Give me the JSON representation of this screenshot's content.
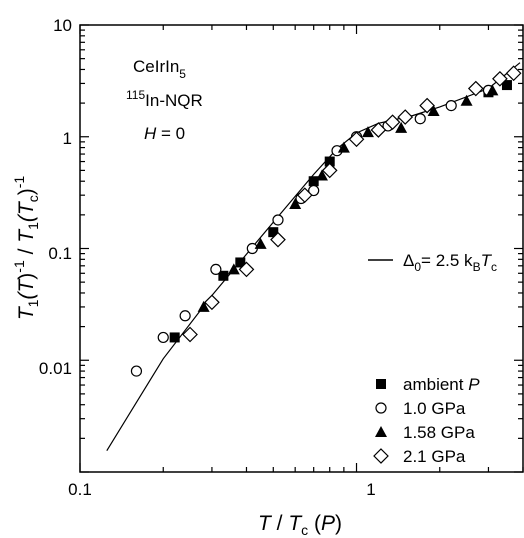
{
  "chart_data": {
    "type": "scatter",
    "x_scale": "log",
    "y_scale": "log",
    "xlim": [
      0.1,
      4.0
    ],
    "ylim": [
      0.001,
      10
    ],
    "x_ticks": [
      {
        "value": 0.1,
        "label": "0.1"
      },
      {
        "value": 1,
        "label": "1"
      }
    ],
    "y_ticks": [
      {
        "value": 0.01,
        "label": "0.01"
      },
      {
        "value": 0.1,
        "label": "0.1"
      },
      {
        "value": 1,
        "label": "1"
      },
      {
        "value": 10,
        "label": "10"
      }
    ],
    "xlabel": "T / Tc (P)",
    "ylabel": "T1(T)-1 / T1(Tc)-1",
    "annotations": [
      "CeIrIn5",
      "115In-NQR",
      "H = 0"
    ],
    "legend_position": "bottom-right",
    "series": [
      {
        "name": "ambient P",
        "marker": "square-filled",
        "points": [
          [
            0.22,
            0.016
          ],
          [
            0.33,
            0.057
          ],
          [
            0.38,
            0.075
          ],
          [
            0.5,
            0.14
          ],
          [
            0.7,
            0.4
          ],
          [
            0.8,
            0.6
          ],
          [
            3.0,
            2.5
          ],
          [
            3.5,
            2.9
          ]
        ]
      },
      {
        "name": "1.0 GPa",
        "marker": "circle-open",
        "points": [
          [
            0.16,
            0.008
          ],
          [
            0.2,
            0.016
          ],
          [
            0.24,
            0.025
          ],
          [
            0.31,
            0.065
          ],
          [
            0.42,
            0.1
          ],
          [
            0.52,
            0.18
          ],
          [
            0.63,
            0.28
          ],
          [
            0.7,
            0.33
          ],
          [
            0.85,
            0.75
          ],
          [
            1.0,
            1.0
          ],
          [
            1.3,
            1.25
          ],
          [
            1.7,
            1.45
          ],
          [
            2.2,
            1.9
          ],
          [
            3.0,
            2.6
          ]
        ]
      },
      {
        "name": "1.58 GPa",
        "marker": "triangle-filled",
        "points": [
          [
            0.28,
            0.03
          ],
          [
            0.36,
            0.065
          ],
          [
            0.45,
            0.11
          ],
          [
            0.6,
            0.25
          ],
          [
            0.75,
            0.45
          ],
          [
            0.9,
            0.8
          ],
          [
            1.1,
            1.1
          ],
          [
            1.45,
            1.2
          ],
          [
            1.9,
            1.7
          ],
          [
            2.5,
            2.1
          ],
          [
            3.1,
            2.6
          ]
        ]
      },
      {
        "name": "2.1 GPa",
        "marker": "diamond-open",
        "points": [
          [
            0.25,
            0.017
          ],
          [
            0.3,
            0.033
          ],
          [
            0.4,
            0.065
          ],
          [
            0.52,
            0.12
          ],
          [
            0.65,
            0.3
          ],
          [
            0.8,
            0.5
          ],
          [
            1.0,
            0.95
          ],
          [
            1.2,
            1.15
          ],
          [
            1.35,
            1.35
          ],
          [
            1.5,
            1.5
          ],
          [
            1.8,
            1.9
          ],
          [
            2.7,
            2.7
          ],
          [
            3.3,
            3.3
          ],
          [
            3.7,
            3.7
          ]
        ]
      }
    ],
    "fit_line": {
      "label": "Δ0= 2.5 kBTc",
      "points": [
        [
          0.125,
          0.00155
        ],
        [
          0.2,
          0.0103
        ],
        [
          0.3,
          0.038
        ],
        [
          0.5,
          0.172
        ],
        [
          0.7,
          0.46
        ],
        [
          0.85,
          0.78
        ],
        [
          1.0,
          1.08
        ],
        [
          1.2,
          1.32
        ],
        [
          1.6,
          1.55
        ],
        [
          2.0,
          1.85
        ],
        [
          3.0,
          2.7
        ],
        [
          3.9,
          4.6
        ]
      ]
    }
  },
  "labels": {
    "x_tick_01": "0.1",
    "x_tick_1": "1",
    "y_tick_001": "0.01",
    "y_tick_01": "0.1",
    "y_tick_1": "1",
    "y_tick_10": "10",
    "compound_a": "CeIrIn",
    "compound_sub": "5",
    "nqr_sup": "115",
    "nqr_main": "In-NQR",
    "field_var": "H",
    "field_rest": " = 0",
    "xlabel_T": "T",
    "xlabel_slash": " / ",
    "xlabel_T2": "T",
    "xlabel_c": "c",
    "xlabel_paren_open": " (",
    "xlabel_P": "P",
    "xlabel_paren_close": ")",
    "ylabel_T1a": "T",
    "ylabel_1a": "1",
    "ylabel_T_a": "(T",
    "ylabel_exp_a": "-1",
    "ylabel_close_a": ")",
    "ylabel_slash": "  /  ",
    "ylabel_T1b": "T",
    "ylabel_1b": "1",
    "ylabel_Tc": "(T",
    "ylabel_c": "c",
    "ylabel_close_b": ")",
    "ylabel_exp_b": "-1",
    "fit_delta": "Δ",
    "fit_0": "0",
    "fit_eq": "= 2.5 k",
    "fit_B": "B",
    "fit_T": "T",
    "fit_c": "c",
    "legend_ambient": "ambient ",
    "legend_ambient_P": "P",
    "legend_1": "1.0 GPa",
    "legend_2": "1.58 GPa",
    "legend_3": "2.1 GPa"
  }
}
